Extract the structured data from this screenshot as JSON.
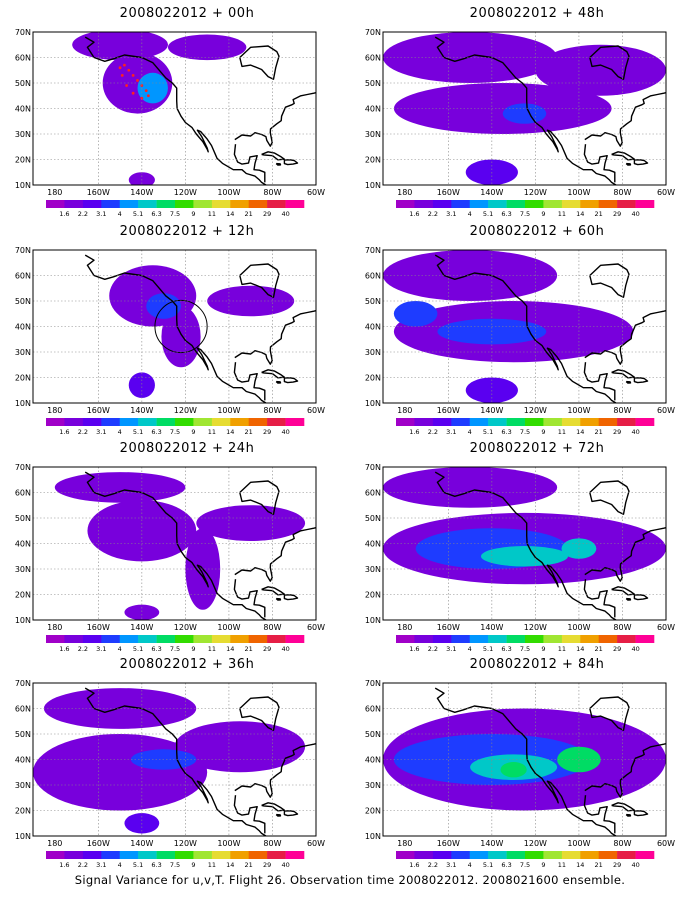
{
  "chart_data": {
    "type": "heatmap",
    "footer": "Signal Variance for u,v,T. Flight 26. Observation time 2008022012. 2008021600 ensemble.",
    "lon_ticks": [
      "180",
      "160W",
      "140W",
      "120W",
      "100W",
      "80W",
      "60W"
    ],
    "lat_ticks": [
      "70N",
      "60N",
      "50N",
      "40N",
      "30N",
      "20N",
      "10N"
    ],
    "xlim": [
      -190,
      -60
    ],
    "ylim": [
      10,
      70
    ],
    "grid": true,
    "colorbar": {
      "colors": [
        "#a000c8",
        "#7800dc",
        "#5a00f0",
        "#1e3cff",
        "#0096ff",
        "#00c8c8",
        "#00dc64",
        "#32dc00",
        "#a0e632",
        "#e6dc32",
        "#f0a000",
        "#f06400",
        "#e61e46",
        "#ff0096"
      ],
      "labels": [
        "1.6",
        "2.2",
        "3.1",
        "4",
        "5.1",
        "6.3",
        "7.5",
        "9",
        "11",
        "14",
        "21",
        "29",
        "40"
      ]
    },
    "panels": [
      {
        "title": "2008022012 + 00h",
        "fields": [
          {
            "lon": -142,
            "lat": 50,
            "rx": 16,
            "ry": 12,
            "level": 1
          },
          {
            "lon": -135,
            "lat": 48,
            "rx": 7,
            "ry": 6,
            "level": 4
          },
          {
            "lon": -150,
            "lat": 65,
            "rx": 22,
            "ry": 6,
            "level": 1
          },
          {
            "lon": -110,
            "lat": 64,
            "rx": 18,
            "ry": 5,
            "level": 1
          },
          {
            "lon": -140,
            "lat": 12,
            "rx": 6,
            "ry": 3,
            "level": 1
          }
        ]
      },
      {
        "title": "2008022012 + 12h",
        "fields": [
          {
            "lon": -135,
            "lat": 52,
            "rx": 20,
            "ry": 12,
            "level": 1
          },
          {
            "lon": -122,
            "lat": 36,
            "rx": 9,
            "ry": 12,
            "level": 1
          },
          {
            "lon": -130,
            "lat": 48,
            "rx": 8,
            "ry": 5,
            "level": 3
          },
          {
            "lon": -90,
            "lat": 50,
            "rx": 20,
            "ry": 6,
            "level": 1
          },
          {
            "lon": -140,
            "lat": 17,
            "rx": 6,
            "ry": 5,
            "level": 2
          }
        ]
      },
      {
        "title": "2008022012 + 24h",
        "fields": [
          {
            "lon": -140,
            "lat": 45,
            "rx": 25,
            "ry": 12,
            "level": 1
          },
          {
            "lon": -112,
            "lat": 30,
            "rx": 8,
            "ry": 16,
            "level": 1
          },
          {
            "lon": -90,
            "lat": 48,
            "rx": 25,
            "ry": 7,
            "level": 1
          },
          {
            "lon": -150,
            "lat": 62,
            "rx": 30,
            "ry": 6,
            "level": 1
          },
          {
            "lon": -140,
            "lat": 13,
            "rx": 8,
            "ry": 3,
            "level": 1
          }
        ]
      },
      {
        "title": "2008022012 + 36h",
        "fields": [
          {
            "lon": -150,
            "lat": 35,
            "rx": 40,
            "ry": 15,
            "level": 1
          },
          {
            "lon": -150,
            "lat": 60,
            "rx": 35,
            "ry": 8,
            "level": 1
          },
          {
            "lon": -95,
            "lat": 45,
            "rx": 30,
            "ry": 10,
            "level": 1
          },
          {
            "lon": -130,
            "lat": 40,
            "rx": 15,
            "ry": 4,
            "level": 3
          },
          {
            "lon": -140,
            "lat": 15,
            "rx": 8,
            "ry": 4,
            "level": 2
          }
        ]
      },
      {
        "title": "2008022012 + 48h",
        "fields": [
          {
            "lon": -135,
            "lat": 40,
            "rx": 50,
            "ry": 10,
            "level": 1
          },
          {
            "lon": -150,
            "lat": 60,
            "rx": 40,
            "ry": 10,
            "level": 1
          },
          {
            "lon": -90,
            "lat": 55,
            "rx": 30,
            "ry": 10,
            "level": 1
          },
          {
            "lon": -140,
            "lat": 15,
            "rx": 12,
            "ry": 5,
            "level": 2
          },
          {
            "lon": -125,
            "lat": 38,
            "rx": 10,
            "ry": 4,
            "level": 3
          }
        ]
      },
      {
        "title": "2008022012 + 60h",
        "fields": [
          {
            "lon": -130,
            "lat": 38,
            "rx": 55,
            "ry": 12,
            "level": 1
          },
          {
            "lon": -150,
            "lat": 60,
            "rx": 40,
            "ry": 10,
            "level": 1
          },
          {
            "lon": -140,
            "lat": 38,
            "rx": 25,
            "ry": 5,
            "level": 3
          },
          {
            "lon": -175,
            "lat": 45,
            "rx": 10,
            "ry": 5,
            "level": 3
          },
          {
            "lon": -140,
            "lat": 15,
            "rx": 12,
            "ry": 5,
            "level": 2
          }
        ]
      },
      {
        "title": "2008022012 + 72h",
        "fields": [
          {
            "lon": -125,
            "lat": 38,
            "rx": 65,
            "ry": 14,
            "level": 1
          },
          {
            "lon": -150,
            "lat": 62,
            "rx": 40,
            "ry": 8,
            "level": 1
          },
          {
            "lon": -140,
            "lat": 38,
            "rx": 35,
            "ry": 8,
            "level": 3
          },
          {
            "lon": -125,
            "lat": 35,
            "rx": 20,
            "ry": 4,
            "level": 5
          },
          {
            "lon": -100,
            "lat": 38,
            "rx": 8,
            "ry": 4,
            "level": 5
          }
        ]
      },
      {
        "title": "2008022012 + 84h",
        "fields": [
          {
            "lon": -125,
            "lat": 40,
            "rx": 65,
            "ry": 20,
            "level": 1
          },
          {
            "lon": -140,
            "lat": 40,
            "rx": 45,
            "ry": 10,
            "level": 3
          },
          {
            "lon": -130,
            "lat": 37,
            "rx": 20,
            "ry": 5,
            "level": 5
          },
          {
            "lon": -100,
            "lat": 40,
            "rx": 10,
            "ry": 5,
            "level": 6
          },
          {
            "lon": -130,
            "lat": 36,
            "rx": 6,
            "ry": 3,
            "level": 6
          }
        ]
      }
    ]
  }
}
